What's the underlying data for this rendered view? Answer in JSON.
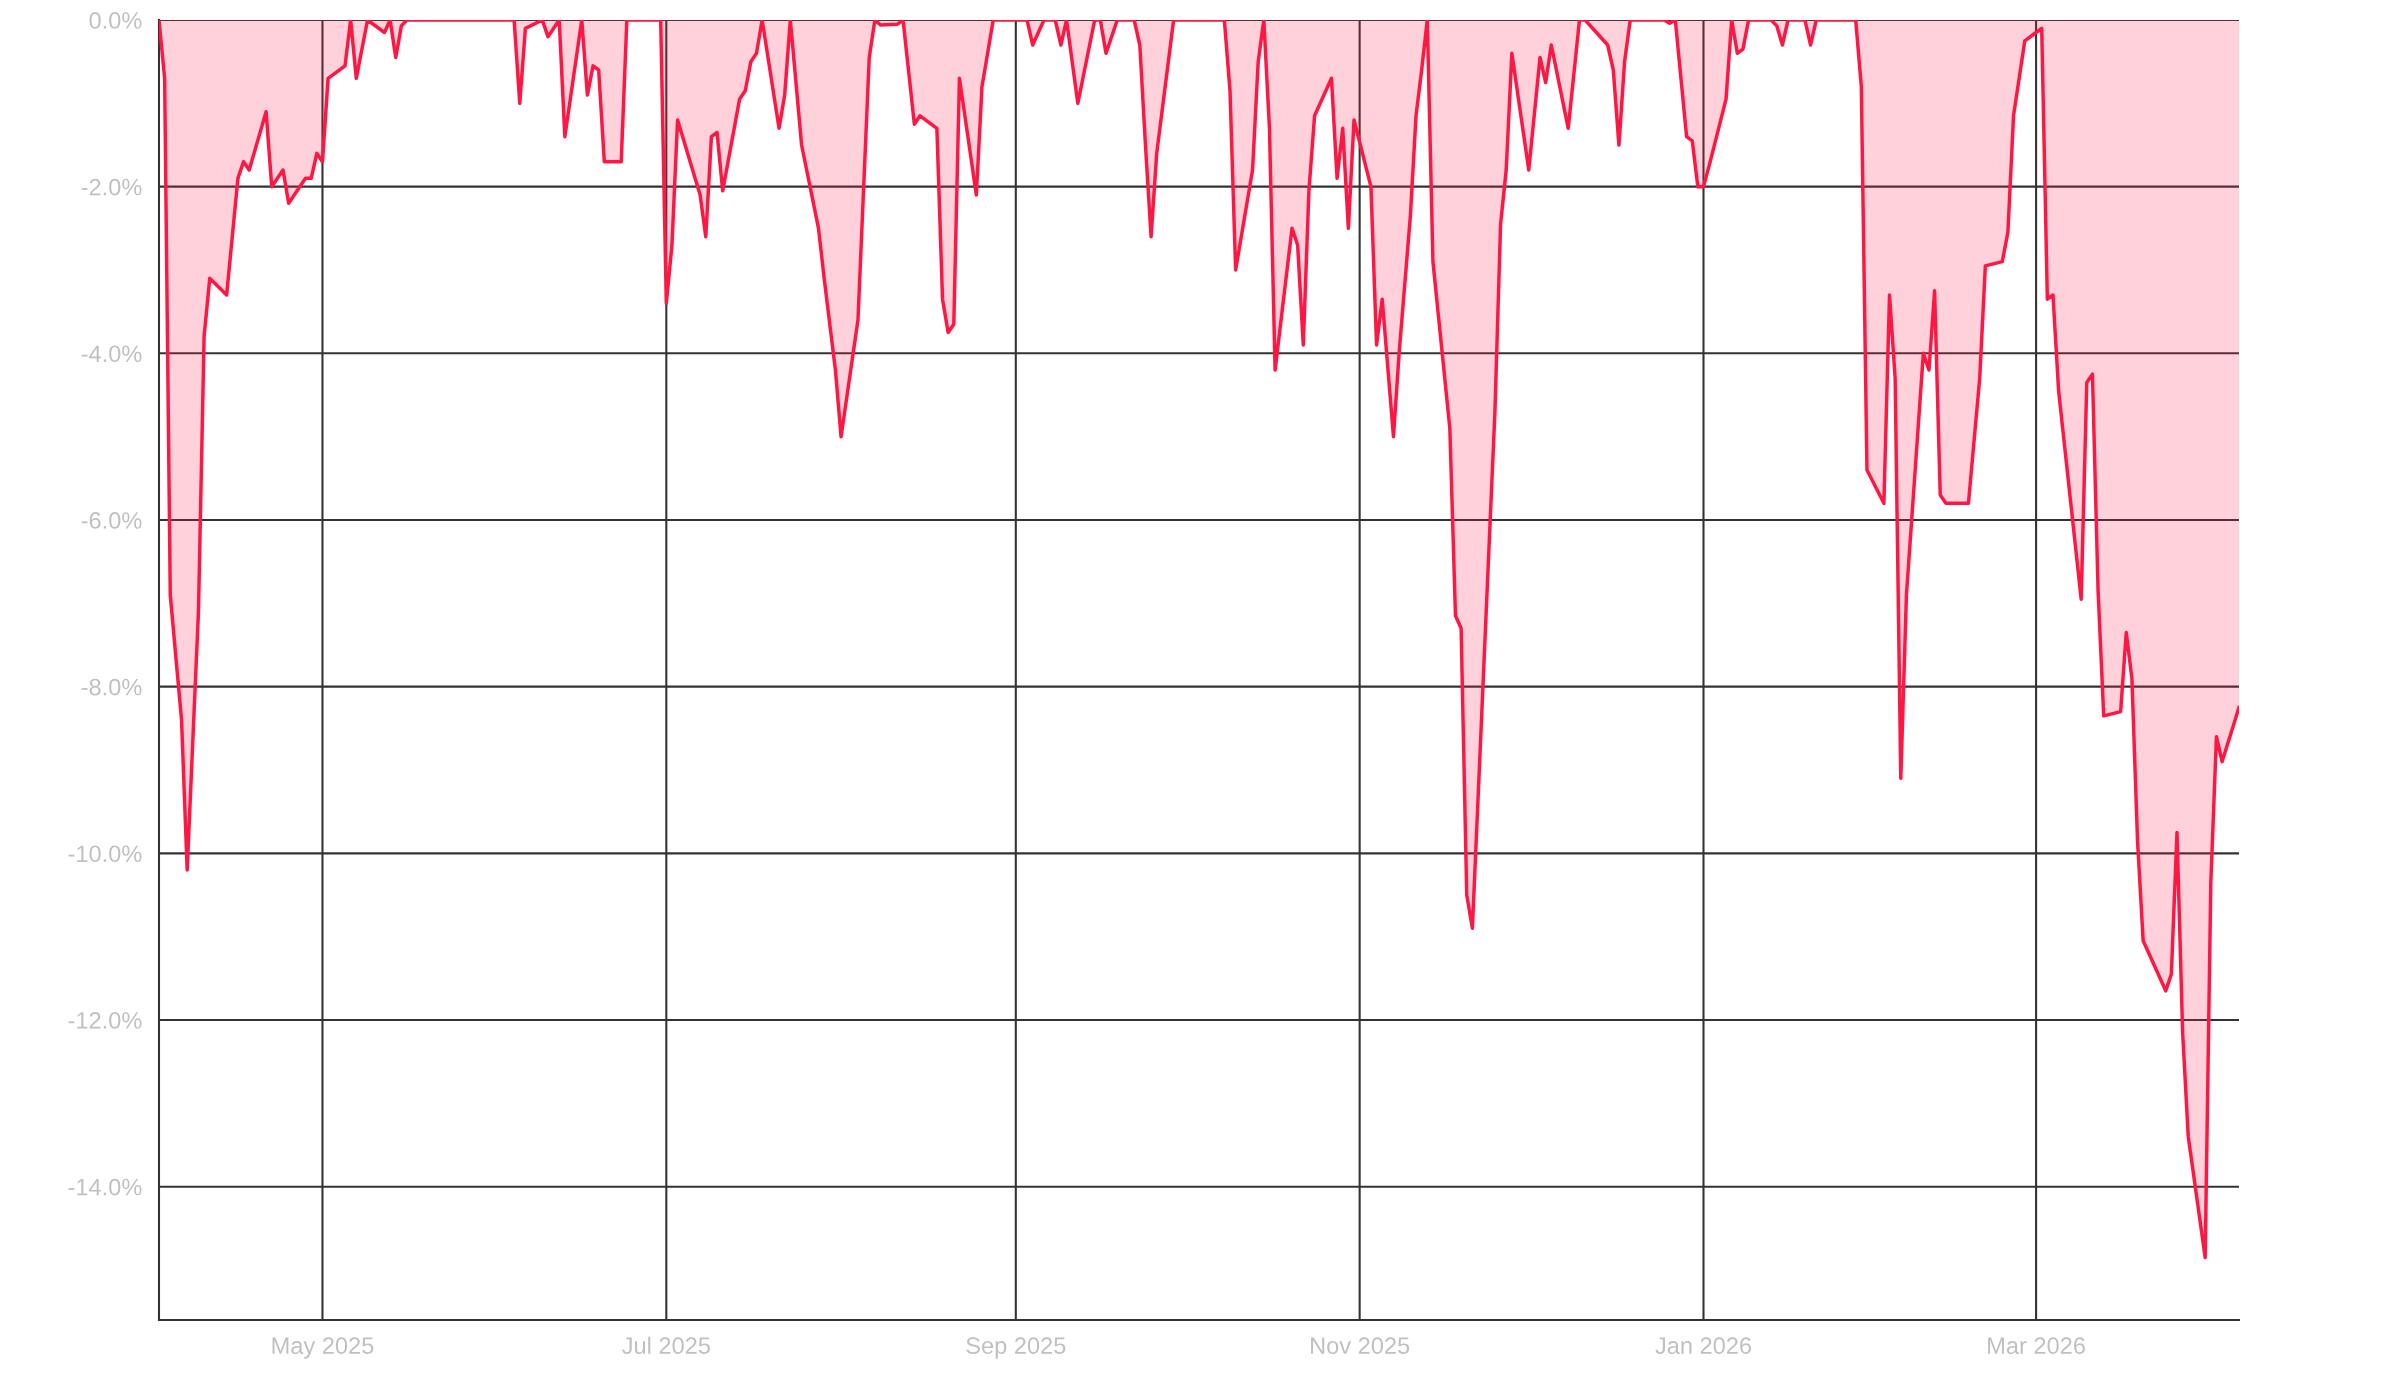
{
  "chart_data": {
    "type": "area",
    "x": [
      "2025-04-02",
      "2025-04-03",
      "2025-04-04",
      "2025-04-06",
      "2025-04-07",
      "2025-04-09",
      "2025-04-10",
      "2025-04-11",
      "2025-04-14",
      "2025-04-16",
      "2025-04-17",
      "2025-04-18",
      "2025-04-21",
      "2025-04-22",
      "2025-04-24",
      "2025-04-25",
      "2025-04-28",
      "2025-04-29",
      "2025-04-30",
      "2025-05-01",
      "2025-05-02",
      "2025-05-05",
      "2025-05-06",
      "2025-05-07",
      "2025-05-09",
      "2025-05-12",
      "2025-05-13",
      "2025-05-14",
      "2025-05-15",
      "2025-05-16",
      "2025-06-04",
      "2025-06-05",
      "2025-06-06",
      "2025-06-09",
      "2025-06-10",
      "2025-06-12",
      "2025-06-13",
      "2025-06-16",
      "2025-06-17",
      "2025-06-18",
      "2025-06-19",
      "2025-06-20",
      "2025-06-23",
      "2025-06-24",
      "2025-06-30",
      "2025-07-01",
      "2025-07-02",
      "2025-07-03",
      "2025-07-07",
      "2025-07-08",
      "2025-07-09",
      "2025-07-10",
      "2025-07-11",
      "2025-07-14",
      "2025-07-15",
      "2025-07-16",
      "2025-07-17",
      "2025-07-18",
      "2025-07-21",
      "2025-07-22",
      "2025-07-23",
      "2025-07-25",
      "2025-07-28",
      "2025-07-29",
      "2025-07-31",
      "2025-08-01",
      "2025-08-04",
      "2025-08-06",
      "2025-08-07",
      "2025-08-08",
      "2025-08-11",
      "2025-08-12",
      "2025-08-14",
      "2025-08-15",
      "2025-08-18",
      "2025-08-19",
      "2025-08-20",
      "2025-08-21",
      "2025-08-22",
      "2025-08-25",
      "2025-08-26",
      "2025-08-28",
      "2025-09-03",
      "2025-09-04",
      "2025-09-06",
      "2025-09-08",
      "2025-09-09",
      "2025-09-10",
      "2025-09-12",
      "2025-09-15",
      "2025-09-16",
      "2025-09-17",
      "2025-09-19",
      "2025-09-22",
      "2025-09-23",
      "2025-09-24",
      "2025-09-25",
      "2025-09-26",
      "2025-09-29",
      "2025-10-08",
      "2025-10-09",
      "2025-10-10",
      "2025-10-13",
      "2025-10-14",
      "2025-10-15",
      "2025-10-16",
      "2025-10-17",
      "2025-10-20",
      "2025-10-21",
      "2025-10-22",
      "2025-10-23",
      "2025-10-24",
      "2025-10-27",
      "2025-10-28",
      "2025-10-29",
      "2025-10-30",
      "2025-10-31",
      "2025-11-03",
      "2025-11-04",
      "2025-11-05",
      "2025-11-07",
      "2025-11-08",
      "2025-11-10",
      "2025-11-11",
      "2025-11-12",
      "2025-11-13",
      "2025-11-14",
      "2025-11-17",
      "2025-11-18",
      "2025-11-19",
      "2025-11-20",
      "2025-11-21",
      "2025-11-25",
      "2025-11-26",
      "2025-11-27",
      "2025-11-28",
      "2025-12-01",
      "2025-12-03",
      "2025-12-04",
      "2025-12-05",
      "2025-12-08",
      "2025-12-10",
      "2025-12-11",
      "2025-12-15",
      "2025-12-16",
      "2025-12-17",
      "2025-12-18",
      "2025-12-19",
      "2025-12-25",
      "2025-12-26",
      "2025-12-27",
      "2025-12-29",
      "2025-12-30",
      "2025-12-31",
      "2026-01-01",
      "2026-01-02",
      "2026-01-05",
      "2026-01-06",
      "2026-01-07",
      "2026-01-08",
      "2026-01-09",
      "2026-01-13",
      "2026-01-14",
      "2026-01-15",
      "2026-01-16",
      "2026-01-19",
      "2026-01-20",
      "2026-01-21",
      "2026-01-28",
      "2026-01-29",
      "2026-01-30",
      "2026-02-02",
      "2026-02-03",
      "2026-02-04",
      "2026-02-05",
      "2026-02-06",
      "2026-02-09",
      "2026-02-10",
      "2026-02-11",
      "2026-02-12",
      "2026-02-13",
      "2026-02-16",
      "2026-02-17",
      "2026-02-19",
      "2026-02-20",
      "2026-02-23",
      "2026-02-24",
      "2026-02-25",
      "2026-02-27",
      "2026-03-02",
      "2026-03-03",
      "2026-03-04",
      "2026-03-05",
      "2026-03-09",
      "2026-03-10",
      "2026-03-11",
      "2026-03-12",
      "2026-03-13",
      "2026-03-16",
      "2026-03-17",
      "2026-03-18",
      "2026-03-19",
      "2026-03-20",
      "2026-03-24",
      "2026-03-25",
      "2026-03-26",
      "2026-03-27",
      "2026-03-28",
      "2026-03-31",
      "2026-04-01",
      "2026-04-02",
      "2026-04-03",
      "2026-04-06"
    ],
    "series": [
      {
        "color": "#ff1744",
        "values": [
          0,
          -0.7,
          -6.9,
          -8.4,
          -10.2,
          -7.1,
          -3.8,
          -3.1,
          -3.3,
          -1.9,
          -1.7,
          -1.8,
          -1.1,
          -2.0,
          -1.8,
          -2.2,
          -1.9,
          -1.9,
          -1.6,
          -1.7,
          -0.7,
          -0.55,
          0,
          -0.7,
          0,
          -0.15,
          0,
          -0.45,
          -0.07,
          0,
          0,
          -1.0,
          -0.1,
          0,
          -0.2,
          0,
          -1.4,
          0,
          -0.9,
          -0.55,
          -0.6,
          -1.7,
          -1.7,
          0,
          0,
          -3.4,
          -2.7,
          -1.2,
          -2.1,
          -2.6,
          -1.4,
          -1.35,
          -2.05,
          -0.95,
          -0.85,
          -0.5,
          -0.4,
          0,
          -1.3,
          -0.9,
          0,
          -1.5,
          -2.5,
          -3.1,
          -4.2,
          -5.0,
          -3.6,
          -0.45,
          0,
          -0.06,
          -0.05,
          0,
          -1.25,
          -1.15,
          -1.3,
          -3.35,
          -3.75,
          -3.65,
          -0.7,
          -2.1,
          -0.8,
          0,
          0,
          -0.3,
          0,
          0,
          -0.3,
          0,
          -1.0,
          0,
          0,
          -0.4,
          0,
          0,
          -0.3,
          -1.5,
          -2.6,
          -1.6,
          0,
          0,
          -0.85,
          -3.0,
          -1.8,
          -0.5,
          0,
          -1.3,
          -4.2,
          -2.5,
          -2.7,
          -3.9,
          -2.05,
          -1.15,
          -0.7,
          -1.9,
          -1.3,
          -2.5,
          -1.2,
          -2.0,
          -3.9,
          -3.35,
          -5.0,
          -4.0,
          -2.35,
          -1.15,
          -0.6,
          0,
          -2.9,
          -4.9,
          -7.15,
          -7.3,
          -10.5,
          -10.9,
          -4.7,
          -2.45,
          -1.8,
          -0.4,
          -1.8,
          -0.45,
          -0.75,
          -0.3,
          -1.3,
          0,
          0,
          -0.3,
          -0.6,
          -1.5,
          -0.5,
          0,
          0,
          -0.04,
          0,
          -1.4,
          -1.45,
          -2.0,
          -2.0,
          -1.75,
          -0.95,
          0,
          -0.4,
          -0.35,
          0,
          0,
          -0.07,
          -0.3,
          0,
          0,
          -0.3,
          0,
          0,
          -0.8,
          -5.4,
          -5.8,
          -3.3,
          -4.3,
          -9.1,
          -6.9,
          -4.0,
          -4.2,
          -3.25,
          -5.7,
          -5.8,
          -5.8,
          -5.8,
          -4.3,
          -2.95,
          -2.9,
          -2.55,
          -1.15,
          -0.25,
          -0.1,
          -3.35,
          -3.3,
          -4.45,
          -6.95,
          -4.35,
          -4.25,
          -6.85,
          -8.35,
          -8.3,
          -7.35,
          -7.9,
          -9.85,
          -11.05,
          -11.65,
          -11.45,
          -9.75,
          -12.15,
          -13.4,
          -14.85,
          -10.35,
          -8.6,
          -8.9,
          -8.25
        ]
      }
    ],
    "xlim": [
      "2025-04-02",
      "2026-04-06"
    ],
    "xticks": [
      {
        "value": "2025-05-01",
        "label": "May 2025"
      },
      {
        "value": "2025-07-01",
        "label": "Jul 2025"
      },
      {
        "value": "2025-09-01",
        "label": "Sep 2025"
      },
      {
        "value": "2025-11-01",
        "label": "Nov 2025"
      },
      {
        "value": "2026-01-01",
        "label": "Jan 2026"
      },
      {
        "value": "2026-03-01",
        "label": "Mar 2026"
      }
    ],
    "ylim": [
      -15.6,
      0
    ],
    "yticks": [
      {
        "value": 0,
        "label": "0.0%"
      },
      {
        "value": -2,
        "label": "-2.0%"
      },
      {
        "value": -4,
        "label": "-4.0%"
      },
      {
        "value": -6,
        "label": "-6.0%"
      },
      {
        "value": -8,
        "label": "-8.0%"
      },
      {
        "value": -10,
        "label": "-10.0%"
      },
      {
        "value": -12,
        "label": "-12.0%"
      },
      {
        "value": -14,
        "label": "-14.0%"
      }
    ],
    "grid": true
  }
}
